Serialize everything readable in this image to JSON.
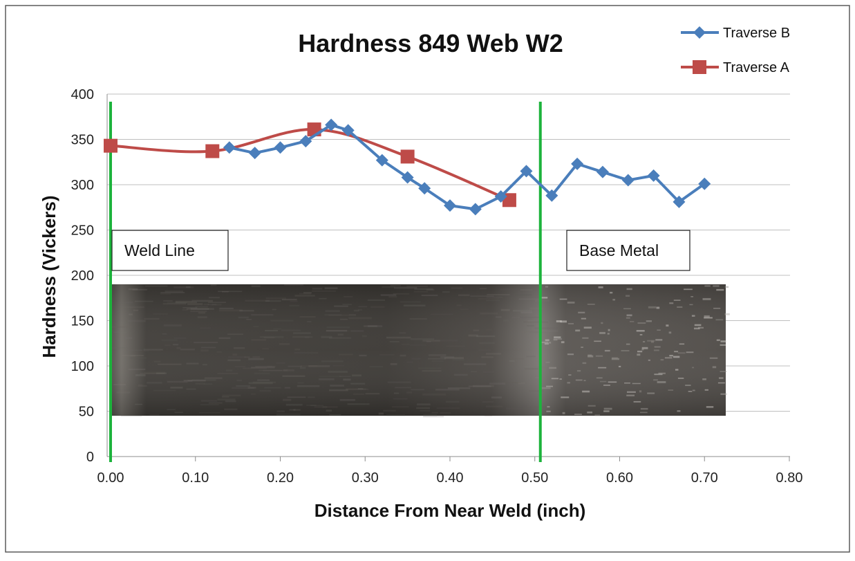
{
  "chart_data": {
    "type": "line",
    "title": "Hardness 849 Web W2",
    "xlabel": "Distance From Near Weld (inch)",
    "ylabel": "Hardness (Vickers)",
    "xlim": [
      0,
      0.8
    ],
    "ylim": [
      0,
      400
    ],
    "x_ticks": [
      "0.00",
      "0.10",
      "0.20",
      "0.30",
      "0.40",
      "0.50",
      "0.60",
      "0.70",
      "0.80"
    ],
    "y_ticks": [
      "0",
      "50",
      "100",
      "150",
      "200",
      "250",
      "300",
      "350",
      "400"
    ],
    "grid": "horizontal",
    "legend_position": "top-right",
    "series": [
      {
        "name": "Traverse B",
        "color": "#4a7ebb",
        "marker": "diamond",
        "x": [
          0.14,
          0.17,
          0.2,
          0.23,
          0.26,
          0.28,
          0.32,
          0.35,
          0.37,
          0.4,
          0.43,
          0.46,
          0.49,
          0.52,
          0.55,
          0.58,
          0.61,
          0.64,
          0.67,
          0.7
        ],
        "y": [
          341,
          335,
          341,
          348,
          366,
          360,
          327,
          308,
          296,
          277,
          273,
          287,
          315,
          288,
          323,
          314,
          305,
          310,
          281,
          301
        ]
      },
      {
        "name": "Traverse A",
        "color": "#be4b48",
        "marker": "square",
        "smooth": true,
        "x": [
          0.0,
          0.12,
          0.24,
          0.35,
          0.47
        ],
        "y": [
          343,
          337,
          361,
          331,
          283
        ]
      }
    ],
    "vertical_lines": [
      {
        "x": 0.0,
        "color": "#1db33c"
      },
      {
        "x": 0.5,
        "color": "#1db33c"
      }
    ],
    "annotations": [
      {
        "text": "Weld Line"
      },
      {
        "text": "Base Metal"
      }
    ]
  }
}
